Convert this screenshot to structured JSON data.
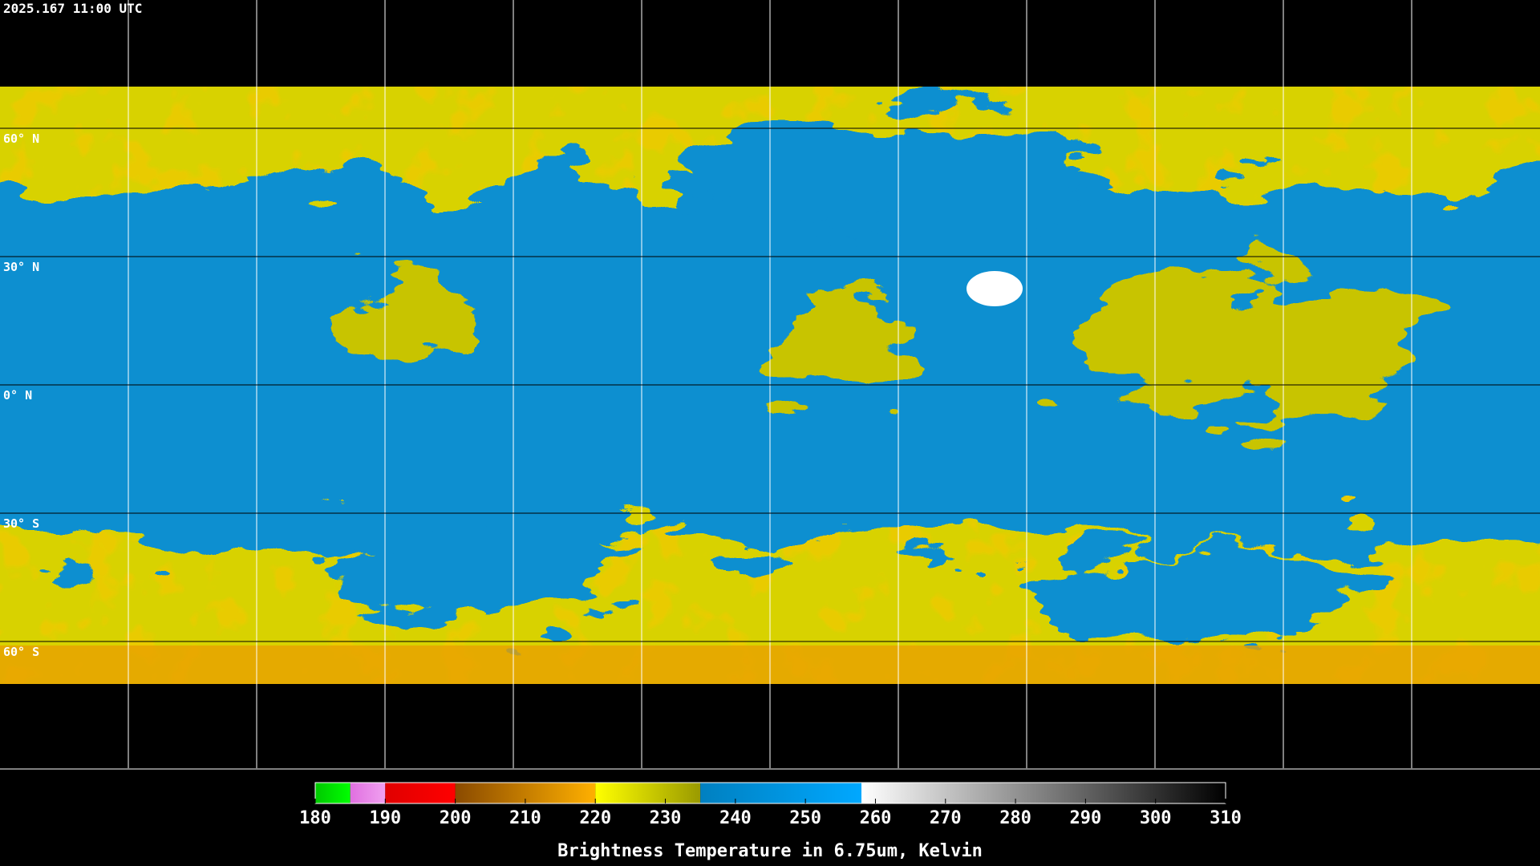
{
  "header": {
    "timestamp": "2025.167 11:00 UTC"
  },
  "map": {
    "latitudes": [
      {
        "value": 60,
        "label": "60° N"
      },
      {
        "value": 30,
        "label": "30° N"
      },
      {
        "value": 0,
        "label": "0° N"
      },
      {
        "value": -30,
        "label": "30° S"
      },
      {
        "value": -60,
        "label": "60° S"
      }
    ]
  },
  "colorbar": {
    "title": "Brightness Temperature in 6.75um, Kelvin",
    "range": [
      180,
      310
    ],
    "ticks": [
      180,
      190,
      200,
      210,
      220,
      230,
      240,
      250,
      260,
      270,
      280,
      290,
      300,
      310
    ],
    "segments": [
      {
        "range": [
          180,
          185
        ],
        "colors": [
          "#00c800",
          "#00ff00"
        ]
      },
      {
        "range": [
          185,
          190
        ],
        "colors": [
          "#e070e0",
          "#f0a0f0"
        ]
      },
      {
        "range": [
          190,
          200
        ],
        "colors": [
          "#e00000",
          "#ff0000"
        ]
      },
      {
        "range": [
          200,
          220
        ],
        "colors": [
          "#8a4a00",
          "#ffb000"
        ]
      },
      {
        "range": [
          220,
          235
        ],
        "colors": [
          "#ffff00",
          "#9a9a00"
        ]
      },
      {
        "range": [
          235,
          258
        ],
        "colors": [
          "#0080c0",
          "#00a8ff"
        ]
      },
      {
        "range": [
          258,
          310
        ],
        "colors": [
          "#ffffff",
          "#000000"
        ]
      }
    ]
  }
}
